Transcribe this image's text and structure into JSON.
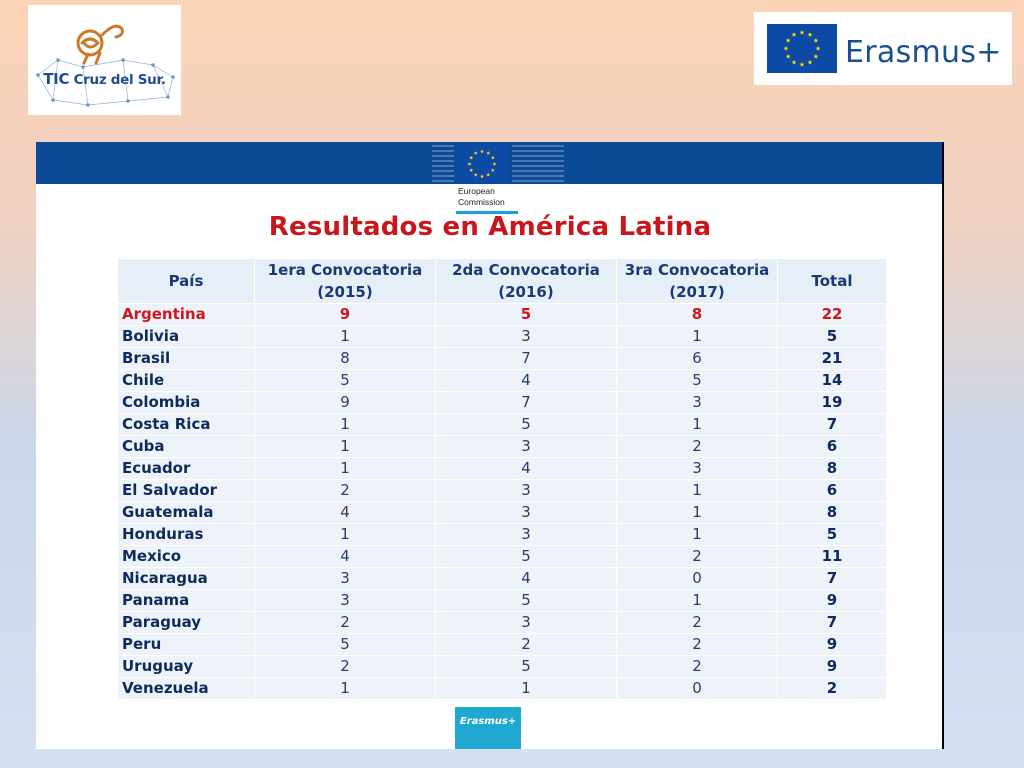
{
  "logos": {
    "left_text_prefix": "TIC",
    "left_text_suffix": "Cruz del Sur.",
    "right_brand": "Erasmus+"
  },
  "slide": {
    "ec_logo_line1": "European",
    "ec_logo_line2": "Commission",
    "title": "Resultados en América Latina",
    "footer_badge": "Erasmus+"
  },
  "table": {
    "headers": {
      "pais": "País",
      "c1_line1": "1era Convocatoria",
      "c1_line2": "(2015)",
      "c2_line1": "2da Convocatoria",
      "c2_line2": "(2016)",
      "c3_line1": "3ra Convocatoria",
      "c3_line2": "(2017)",
      "total": "Total"
    },
    "rows": [
      {
        "country": "Argentina",
        "c1": "9",
        "c2": "5",
        "c3": "8",
        "total": "22",
        "highlight": true
      },
      {
        "country": "Bolivia",
        "c1": "1",
        "c2": "3",
        "c3": "1",
        "total": "5"
      },
      {
        "country": "Brasil",
        "c1": "8",
        "c2": "7",
        "c3": "6",
        "total": "21"
      },
      {
        "country": "Chile",
        "c1": "5",
        "c2": "4",
        "c3": "5",
        "total": "14"
      },
      {
        "country": "Colombia",
        "c1": "9",
        "c2": "7",
        "c3": "3",
        "total": "19"
      },
      {
        "country": "Costa Rica",
        "c1": "1",
        "c2": "5",
        "c3": "1",
        "total": "7"
      },
      {
        "country": "Cuba",
        "c1": "1",
        "c2": "3",
        "c3": "2",
        "total": "6"
      },
      {
        "country": "Ecuador",
        "c1": "1",
        "c2": "4",
        "c3": "3",
        "total": "8"
      },
      {
        "country": "El Salvador",
        "c1": "2",
        "c2": "3",
        "c3": "1",
        "total": "6"
      },
      {
        "country": "Guatemala",
        "c1": "4",
        "c2": "3",
        "c3": "1",
        "total": "8"
      },
      {
        "country": "Honduras",
        "c1": "1",
        "c2": "3",
        "c3": "1",
        "total": "5"
      },
      {
        "country": "Mexico",
        "c1": "4",
        "c2": "5",
        "c3": "2",
        "total": "11"
      },
      {
        "country": "Nicaragua",
        "c1": "3",
        "c2": "4",
        "c3": "0",
        "total": "7"
      },
      {
        "country": "Panama",
        "c1": "3",
        "c2": "5",
        "c3": "1",
        "total": "9"
      },
      {
        "country": "Paraguay",
        "c1": "2",
        "c2": "3",
        "c3": "2",
        "total": "7"
      },
      {
        "country": "Peru",
        "c1": "5",
        "c2": "2",
        "c3": "2",
        "total": "9"
      },
      {
        "country": "Uruguay",
        "c1": "2",
        "c2": "5",
        "c3": "2",
        "total": "9"
      },
      {
        "country": "Venezuela",
        "c1": "1",
        "c2": "1",
        "c3": "0",
        "total": "2"
      }
    ]
  },
  "colors": {
    "title_red": "#c8161d",
    "eu_blue": "#0b4b95",
    "text_navy": "#0f2b5c",
    "highlight_red": "#d0161f",
    "star_yellow": "#ffd400"
  }
}
